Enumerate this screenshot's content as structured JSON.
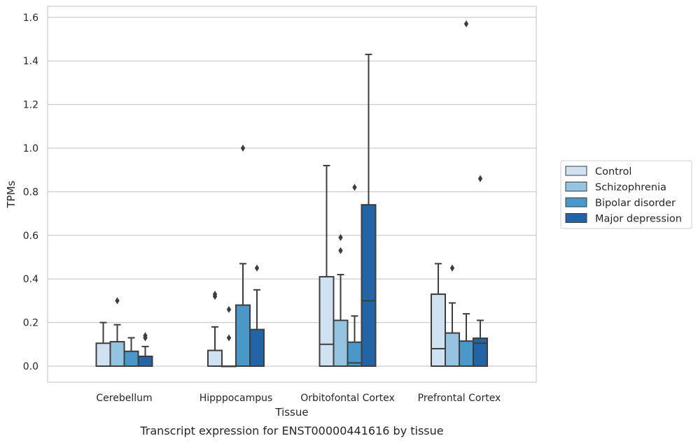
{
  "chart_data": {
    "type": "boxplot",
    "title": "Transcript expression for ENST00000441616 by tissue",
    "xlabel": "Tissue",
    "ylabel": "TPMs",
    "ylim": [
      -0.08,
      1.65
    ],
    "yticks": [
      "0.0",
      "0.2",
      "0.4",
      "0.6",
      "0.8",
      "1.0",
      "1.2",
      "1.4",
      "1.6"
    ],
    "ytick_values": [
      0.0,
      0.2,
      0.4,
      0.6,
      0.8,
      1.0,
      1.2,
      1.4,
      1.6
    ],
    "grid": true,
    "legend_position": "right",
    "categories": [
      "Cerebellum",
      "Hipppocampus",
      "Orbitofontal Cortex",
      "Prefrontal Cortex"
    ],
    "series": [
      {
        "name": "Control",
        "color": "#d0e1f2",
        "boxes": [
          {
            "q1": 0.0,
            "median": 0.0,
            "q3": 0.105,
            "whisker_low": 0.0,
            "whisker_high": 0.2,
            "outliers": []
          },
          {
            "q1": 0.0,
            "median": 0.0,
            "q3": 0.072,
            "whisker_low": 0.0,
            "whisker_high": 0.18,
            "outliers": [
              0.32,
              0.33
            ]
          },
          {
            "q1": 0.0,
            "median": 0.1,
            "q3": 0.41,
            "whisker_low": 0.0,
            "whisker_high": 0.92,
            "outliers": []
          },
          {
            "q1": 0.0,
            "median": 0.08,
            "q3": 0.33,
            "whisker_low": 0.0,
            "whisker_high": 0.47,
            "outliers": []
          }
        ]
      },
      {
        "name": "Schizophrenia",
        "color": "#94c4df",
        "boxes": [
          {
            "q1": 0.0,
            "median": 0.0,
            "q3": 0.112,
            "whisker_low": 0.0,
            "whisker_high": 0.19,
            "outliers": [
              0.3
            ]
          },
          {
            "q1": 0.0,
            "median": 0.0,
            "q3": 0.0,
            "whisker_low": 0.0,
            "whisker_high": 0.0,
            "outliers": [
              0.13,
              0.26
            ]
          },
          {
            "q1": 0.0,
            "median": 0.0,
            "q3": 0.21,
            "whisker_low": 0.0,
            "whisker_high": 0.42,
            "outliers": [
              0.53,
              0.59
            ]
          },
          {
            "q1": 0.0,
            "median": 0.0,
            "q3": 0.152,
            "whisker_low": 0.0,
            "whisker_high": 0.29,
            "outliers": [
              0.45
            ]
          }
        ]
      },
      {
        "name": "Bipolar disorder",
        "color": "#4a98c9",
        "boxes": [
          {
            "q1": 0.0,
            "median": 0.0,
            "q3": 0.068,
            "whisker_low": 0.0,
            "whisker_high": 0.13,
            "outliers": []
          },
          {
            "q1": 0.0,
            "median": 0.0,
            "q3": 0.28,
            "whisker_low": 0.0,
            "whisker_high": 0.47,
            "outliers": [
              1.0
            ]
          },
          {
            "q1": 0.0,
            "median": 0.015,
            "q3": 0.11,
            "whisker_low": 0.0,
            "whisker_high": 0.23,
            "outliers": [
              0.82
            ]
          },
          {
            "q1": 0.0,
            "median": 0.0,
            "q3": 0.115,
            "whisker_low": 0.0,
            "whisker_high": 0.24,
            "outliers": [
              1.57
            ]
          }
        ]
      },
      {
        "name": "Major depression",
        "color": "#2264a5",
        "boxes": [
          {
            "q1": 0.0,
            "median": 0.0,
            "q3": 0.045,
            "whisker_low": 0.0,
            "whisker_high": 0.09,
            "outliers": [
              0.13,
              0.14
            ]
          },
          {
            "q1": 0.0,
            "median": 0.0,
            "q3": 0.168,
            "whisker_low": 0.0,
            "whisker_high": 0.35,
            "outliers": [
              0.45
            ]
          },
          {
            "q1": 0.0,
            "median": 0.3,
            "q3": 0.74,
            "whisker_low": 0.0,
            "whisker_high": 1.43,
            "outliers": []
          },
          {
            "q1": 0.0,
            "median": 0.105,
            "q3": 0.128,
            "whisker_low": 0.0,
            "whisker_high": 0.21,
            "outliers": [
              0.86
            ]
          }
        ]
      }
    ]
  }
}
